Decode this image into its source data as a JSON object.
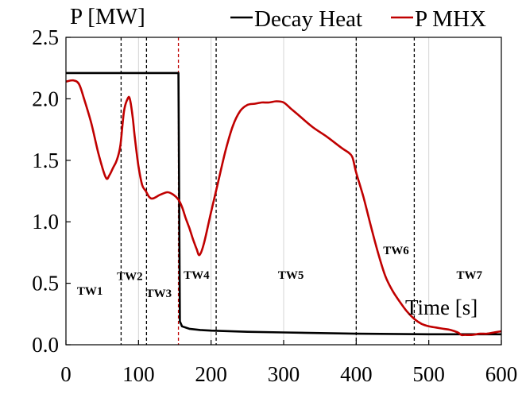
{
  "chart_data": {
    "type": "line",
    "title": "",
    "ylabel": "P [MW]",
    "xlabel": "Time [s]",
    "xlim": [
      0,
      600
    ],
    "ylim": [
      0,
      2.5
    ],
    "xticks": [
      0,
      100,
      200,
      300,
      400,
      500,
      600
    ],
    "yticks": [
      0.0,
      0.5,
      1.0,
      1.5,
      2.0,
      2.5
    ],
    "xtick_labels": [
      "0",
      "100",
      "200",
      "300",
      "400",
      "500",
      "600"
    ],
    "ytick_labels": [
      "0.0",
      "0.5",
      "1.0",
      "1.5",
      "2.0",
      "2.5"
    ],
    "grid": "vertical",
    "legend_position": "top",
    "legend": [
      "Decay Heat",
      "P MHX"
    ],
    "series": [
      {
        "name": "Decay Heat",
        "color": "#000000",
        "x": [
          0,
          155,
          156,
          157,
          160,
          170,
          185,
          200,
          250,
          300,
          400,
          500,
          600
        ],
        "y": [
          2.21,
          2.21,
          1.2,
          0.19,
          0.15,
          0.13,
          0.12,
          0.115,
          0.105,
          0.1,
          0.09,
          0.085,
          0.085
        ]
      },
      {
        "name": "P MHX",
        "color": "#c00000",
        "x": [
          0,
          10,
          18,
          25,
          35,
          45,
          55,
          60,
          65,
          70,
          75,
          80,
          85,
          88,
          92,
          95,
          100,
          105,
          110,
          115,
          120,
          130,
          140,
          148,
          155,
          160,
          165,
          170,
          175,
          180,
          184,
          190,
          200,
          210,
          220,
          230,
          240,
          250,
          260,
          270,
          280,
          290,
          300,
          310,
          320,
          340,
          360,
          380,
          390,
          395,
          400,
          410,
          420,
          430,
          440,
          450,
          460,
          470,
          480,
          490,
          500,
          510,
          520,
          530,
          540,
          545,
          550,
          560,
          570,
          580,
          590,
          600
        ],
        "y": [
          2.14,
          2.15,
          2.12,
          2.0,
          1.8,
          1.55,
          1.36,
          1.38,
          1.44,
          1.5,
          1.62,
          1.9,
          2.0,
          2.0,
          1.85,
          1.68,
          1.45,
          1.3,
          1.25,
          1.2,
          1.19,
          1.22,
          1.24,
          1.22,
          1.18,
          1.12,
          1.03,
          0.95,
          0.86,
          0.78,
          0.73,
          0.82,
          1.08,
          1.33,
          1.58,
          1.78,
          1.9,
          1.95,
          1.96,
          1.97,
          1.97,
          1.98,
          1.97,
          1.92,
          1.87,
          1.77,
          1.69,
          1.6,
          1.56,
          1.52,
          1.4,
          1.2,
          0.97,
          0.75,
          0.56,
          0.44,
          0.35,
          0.27,
          0.21,
          0.17,
          0.15,
          0.14,
          0.13,
          0.12,
          0.1,
          0.08,
          0.08,
          0.08,
          0.09,
          0.09,
          0.1,
          0.11
        ]
      }
    ],
    "vlines": [
      {
        "x": 76,
        "color": "#000000"
      },
      {
        "x": 111,
        "color": "#000000"
      },
      {
        "x": 155,
        "color": "#c00000"
      },
      {
        "x": 207,
        "color": "#000000"
      },
      {
        "x": 400,
        "color": "#000000"
      },
      {
        "x": 480,
        "color": "#000000"
      }
    ],
    "annotations": [
      {
        "text": "TW1",
        "x": 33,
        "y": 0.44
      },
      {
        "text": "TW2",
        "x": 88,
        "y": 0.56
      },
      {
        "text": "TW3",
        "x": 128,
        "y": 0.42
      },
      {
        "text": "TW4",
        "x": 180,
        "y": 0.57
      },
      {
        "text": "TW5",
        "x": 310,
        "y": 0.57
      },
      {
        "text": "TW6",
        "x": 455,
        "y": 0.77
      },
      {
        "text": "TW7",
        "x": 556,
        "y": 0.57
      }
    ]
  }
}
